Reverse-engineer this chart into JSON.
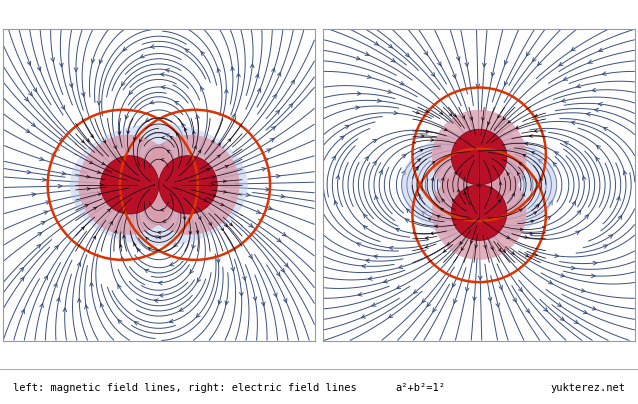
{
  "title_left": "left: magnetic field lines, right: electric field lines",
  "title_right_eq": "a²+b²=1²",
  "title_site": "yukterez.net",
  "bg_color": "#ffffff",
  "stream_color": "#3a5080",
  "fill_blue": "#b0c0e8",
  "fill_pink": "#d898a8",
  "fill_red": "#b80820",
  "outline_color": "#dd3300",
  "divider_color": "#999999",
  "bottom_text_color": "#000000",
  "domain": 2.8,
  "figsize": [
    6.38,
    4.04
  ],
  "dpi": 100
}
